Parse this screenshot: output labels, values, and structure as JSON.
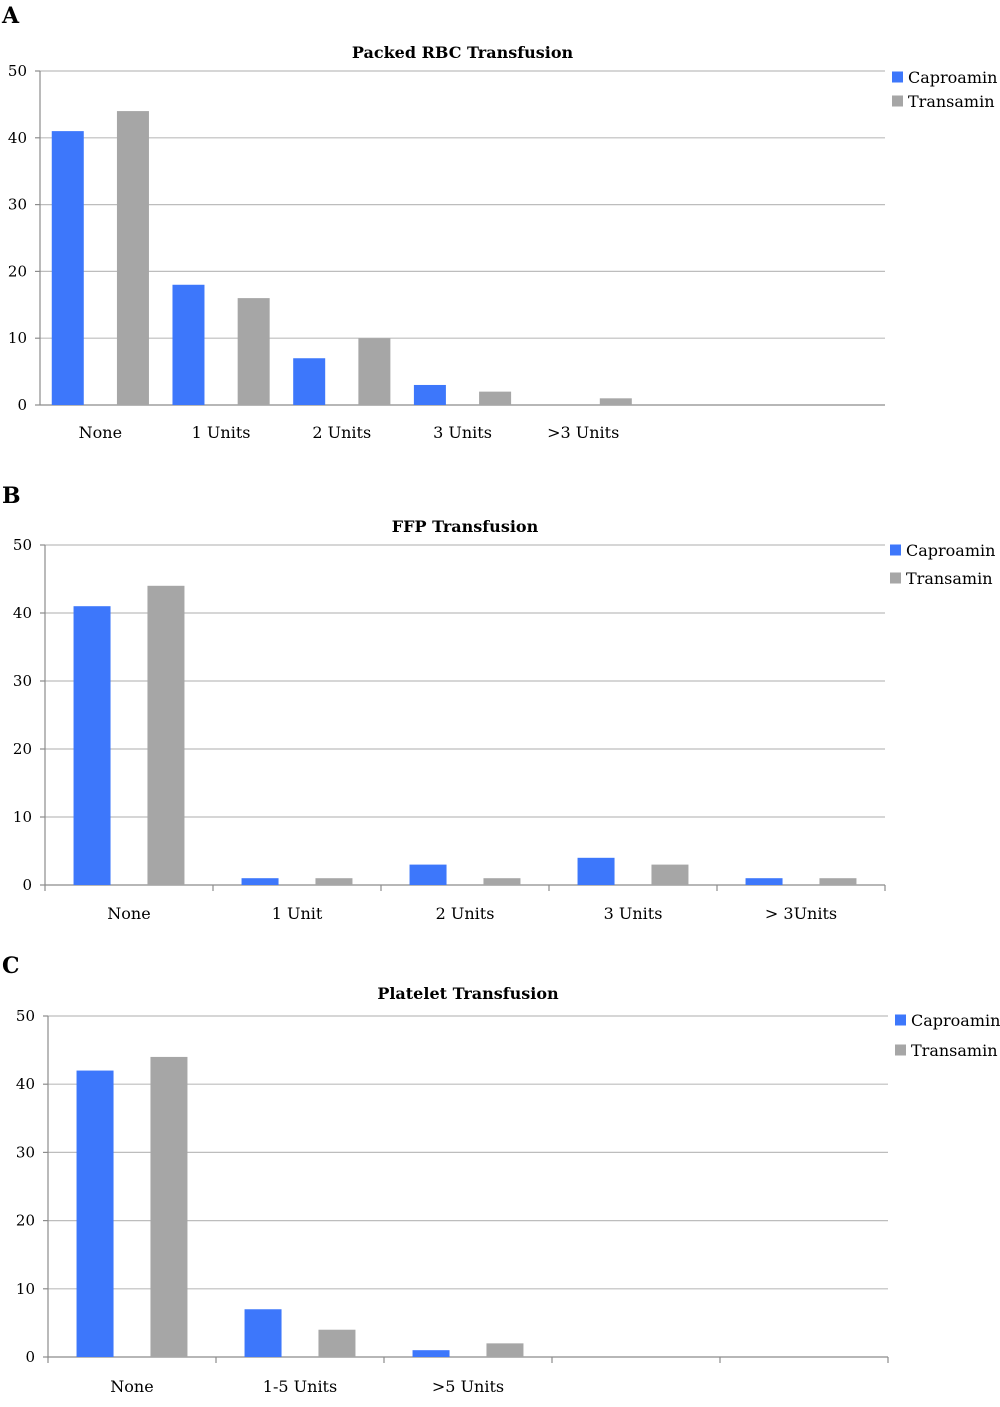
{
  "colors": {
    "caproamin": "#3d77fb",
    "transamin": "#a6a6a6",
    "grid": "#bdbdbd",
    "axis": "#8c8c8c"
  },
  "chart_data": [
    {
      "panel": "A",
      "type": "bar",
      "title": "Packed RBC Transfusion",
      "xlabel": "",
      "ylabel": "",
      "ylim": [
        0,
        50
      ],
      "yticks": [
        0,
        10,
        20,
        30,
        40,
        50
      ],
      "grid": true,
      "legend": "top-right",
      "categories": [
        "None",
        "1 Units",
        "2 Units",
        "3 Units",
        ">3 Units",
        "",
        ""
      ],
      "series": [
        {
          "name": "Caproamin",
          "values": [
            41,
            18,
            7,
            3,
            0,
            null,
            null
          ]
        },
        {
          "name": "Transamin",
          "values": [
            44,
            16,
            10,
            2,
            1,
            null,
            null
          ]
        }
      ]
    },
    {
      "panel": "B",
      "type": "bar",
      "title": "FFP Transfusion",
      "xlabel": "",
      "ylabel": "",
      "ylim": [
        0,
        50
      ],
      "yticks": [
        0,
        10,
        20,
        30,
        40,
        50
      ],
      "grid": true,
      "legend": "top-right",
      "categories": [
        "None",
        "1 Unit",
        "2 Units",
        "3 Units",
        "> 3Units"
      ],
      "series": [
        {
          "name": "Caproamin",
          "values": [
            41,
            1,
            3,
            4,
            1
          ]
        },
        {
          "name": "Transamin",
          "values": [
            44,
            1,
            1,
            3,
            1
          ]
        }
      ]
    },
    {
      "panel": "C",
      "type": "bar",
      "title": "Platelet Transfusion",
      "xlabel": "",
      "ylabel": "",
      "ylim": [
        0,
        50
      ],
      "yticks": [
        0,
        10,
        20,
        30,
        40,
        50
      ],
      "grid": true,
      "legend": "top-right",
      "categories": [
        "None",
        "1-5 Units",
        ">5 Units",
        "",
        ""
      ],
      "series": [
        {
          "name": "Caproamin",
          "values": [
            42,
            7,
            1,
            null,
            null
          ]
        },
        {
          "name": "Transamin",
          "values": [
            44,
            4,
            2,
            null,
            null
          ]
        }
      ]
    }
  ]
}
